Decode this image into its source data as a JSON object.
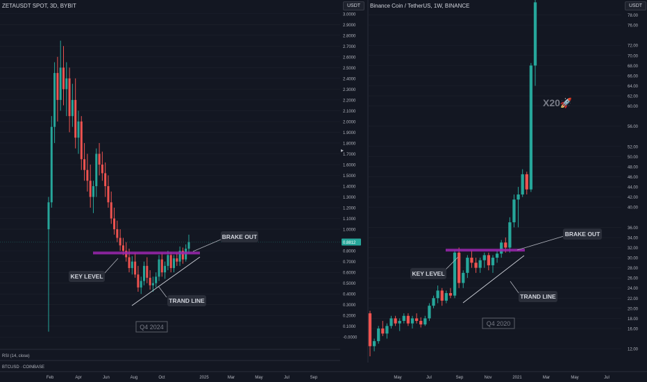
{
  "colors": {
    "background": "#131722",
    "up": "#26a69a",
    "down": "#ef5350",
    "grid": "#1e222d",
    "key_level": "#9c27b0",
    "callout_bg": "#2a2e39",
    "callout_text": "#d1d4dc",
    "axis_text": "#b2b5be"
  },
  "left_panel": {
    "header": "ZETAUSDT SPOT, 3D, BYBIT",
    "unit": "USDT",
    "price_badge": "0.8812",
    "annotations": {
      "brake_out": "BRAKE OUT",
      "key_level": "KEY LEVEL",
      "trand_line": "TRAND LINE",
      "period": "Q4 2024"
    },
    "footer": {
      "rsi": "RSI (14, close)",
      "btc": "BTCUSD · COINBASE"
    }
  },
  "right_panel": {
    "header": "Binance Coin / TetherUS, 1W, BINANCE",
    "unit": "USDT",
    "annotations": {
      "brake_out": "BRAKE OUT",
      "key_level": "KEY LEVEL",
      "trand_line": "TRAND LINE",
      "period": "Q4 2020",
      "multiplier": "X20🚀"
    }
  },
  "chart_data": [
    {
      "type": "candlestick",
      "title": "ZETAUSDT SPOT, 3D, BYBIT",
      "x_ticks": [
        "Feb",
        "Apr",
        "Jun",
        "Aug",
        "Oct",
        "2025",
        "Mar",
        "May",
        "Jul",
        "Sep"
      ],
      "y_ticks": [
        "-0.0000",
        "0.1000",
        "0.2000",
        "0.3000",
        "0.4000",
        "0.5000",
        "0.6000",
        "0.7000",
        "0.8000",
        "1.0000",
        "1.1000",
        "1.2000",
        "1.3000",
        "1.4000",
        "1.5000",
        "1.6000",
        "1.7000",
        "1.8000",
        "1.9000",
        "2.0000",
        "2.1000",
        "2.2000",
        "2.3000",
        "2.4000",
        "2.5000",
        "2.6000",
        "2.7000",
        "2.8000",
        "2.9000",
        "3.0000"
      ],
      "ylim": [
        -0.05,
        3.05
      ],
      "key_level": 0.78,
      "last_price": 0.8812,
      "candles": [
        [
          1.0,
          1.3,
          0.05,
          1.25
        ],
        [
          1.25,
          2.05,
          1.2,
          1.95
        ],
        [
          1.95,
          2.55,
          1.8,
          2.45
        ],
        [
          2.45,
          2.6,
          2.0,
          2.2
        ],
        [
          2.2,
          2.75,
          2.1,
          2.5
        ],
        [
          2.5,
          2.7,
          2.15,
          2.3
        ],
        [
          2.3,
          2.55,
          2.05,
          2.4
        ],
        [
          2.4,
          2.5,
          1.9,
          2.05
        ],
        [
          2.05,
          2.35,
          1.95,
          2.2
        ],
        [
          2.2,
          2.4,
          1.75,
          1.85
        ],
        [
          1.85,
          2.1,
          1.7,
          2.0
        ],
        [
          2.0,
          2.05,
          1.55,
          1.65
        ],
        [
          1.65,
          1.8,
          1.45,
          1.55
        ],
        [
          1.55,
          1.7,
          1.35,
          1.45
        ],
        [
          1.45,
          1.6,
          1.2,
          1.3
        ],
        [
          1.3,
          1.45,
          1.15,
          1.4
        ],
        [
          1.4,
          1.75,
          1.3,
          1.7
        ],
        [
          1.7,
          1.8,
          1.5,
          1.6
        ],
        [
          1.6,
          1.72,
          1.45,
          1.52
        ],
        [
          1.52,
          1.62,
          1.3,
          1.4
        ],
        [
          1.4,
          1.5,
          1.2,
          1.25
        ],
        [
          1.25,
          1.35,
          1.05,
          1.1
        ],
        [
          1.1,
          1.2,
          0.95,
          1.0
        ],
        [
          1.0,
          1.08,
          0.88,
          0.92
        ],
        [
          0.92,
          1.0,
          0.8,
          0.85
        ],
        [
          0.85,
          0.92,
          0.76,
          0.8
        ],
        [
          0.8,
          0.88,
          0.7,
          0.74
        ],
        [
          0.74,
          0.82,
          0.6,
          0.64
        ],
        [
          0.64,
          0.75,
          0.58,
          0.7
        ],
        [
          0.7,
          0.78,
          0.55,
          0.58
        ],
        [
          0.58,
          0.66,
          0.42,
          0.46
        ],
        [
          0.46,
          0.56,
          0.4,
          0.52
        ],
        [
          0.52,
          0.7,
          0.48,
          0.66
        ],
        [
          0.66,
          0.74,
          0.5,
          0.55
        ],
        [
          0.55,
          0.62,
          0.44,
          0.48
        ],
        [
          0.48,
          0.56,
          0.42,
          0.5
        ],
        [
          0.5,
          0.6,
          0.46,
          0.56
        ],
        [
          0.56,
          0.76,
          0.52,
          0.72
        ],
        [
          0.72,
          0.78,
          0.56,
          0.6
        ],
        [
          0.6,
          0.7,
          0.54,
          0.66
        ],
        [
          0.66,
          0.8,
          0.62,
          0.76
        ],
        [
          0.76,
          0.79,
          0.6,
          0.64
        ],
        [
          0.64,
          0.76,
          0.6,
          0.73
        ],
        [
          0.73,
          0.78,
          0.66,
          0.7
        ],
        [
          0.7,
          0.84,
          0.66,
          0.8
        ],
        [
          0.8,
          0.83,
          0.68,
          0.72
        ],
        [
          0.72,
          0.86,
          0.7,
          0.82
        ],
        [
          0.82,
          0.95,
          0.78,
          0.88
        ]
      ]
    },
    {
      "type": "candlestick",
      "title": "Binance Coin / TetherUS, 1W, BINANCE",
      "x_ticks": [
        "May",
        "Jul",
        "Sep",
        "Nov",
        "2021",
        "Mar",
        "May",
        "Jul"
      ],
      "y_ticks": [
        "12.00",
        "16.00",
        "18.00",
        "20.00",
        "22.00",
        "24.00",
        "26.00",
        "28.00",
        "30.00",
        "32.00",
        "34.00",
        "36.00",
        "40.00",
        "42.00",
        "44.00",
        "46.00",
        "48.00",
        "50.00",
        "52.00",
        "56.00",
        "60.00",
        "62.00",
        "64.00",
        "66.00",
        "68.00",
        "70.00",
        "72.00",
        "76.00",
        "78.00"
      ],
      "ylim": [
        10.5,
        80
      ],
      "key_level": 31.5,
      "candles": [
        [
          19.0,
          19.5,
          10.5,
          12.5
        ],
        [
          12.5,
          14.0,
          11.5,
          13.5
        ],
        [
          13.5,
          16.5,
          13.0,
          16.0
        ],
        [
          16.0,
          17.5,
          14.5,
          15.0
        ],
        [
          15.0,
          17.0,
          14.0,
          16.5
        ],
        [
          16.5,
          18.5,
          16.0,
          18.0
        ],
        [
          18.0,
          18.5,
          16.5,
          17.0
        ],
        [
          17.0,
          18.0,
          15.5,
          17.5
        ],
        [
          17.5,
          19.0,
          17.0,
          18.5
        ],
        [
          18.5,
          19.0,
          16.5,
          17.0
        ],
        [
          17.0,
          18.5,
          16.0,
          18.0
        ],
        [
          18.0,
          19.0,
          17.0,
          17.5
        ],
        [
          17.5,
          18.2,
          16.2,
          16.8
        ],
        [
          16.8,
          18.5,
          16.5,
          18.0
        ],
        [
          18.0,
          21.0,
          17.5,
          20.5
        ],
        [
          20.5,
          22.5,
          20.0,
          22.0
        ],
        [
          22.0,
          24.5,
          21.0,
          23.5
        ],
        [
          23.5,
          24.0,
          20.5,
          21.5
        ],
        [
          21.5,
          23.5,
          21.0,
          23.0
        ],
        [
          23.0,
          24.0,
          22.0,
          22.5
        ],
        [
          22.5,
          31.5,
          22.0,
          31.0
        ],
        [
          31.0,
          32.0,
          24.0,
          25.0
        ],
        [
          25.0,
          27.5,
          24.0,
          27.0
        ],
        [
          27.0,
          30.5,
          26.0,
          30.0
        ],
        [
          30.0,
          31.5,
          28.0,
          29.0
        ],
        [
          29.0,
          30.0,
          27.0,
          28.0
        ],
        [
          28.0,
          30.0,
          27.0,
          29.5
        ],
        [
          29.5,
          31.0,
          28.0,
          30.5
        ],
        [
          30.5,
          31.0,
          27.5,
          28.5
        ],
        [
          28.5,
          30.5,
          27.0,
          30.0
        ],
        [
          30.0,
          31.5,
          29.0,
          30.8
        ],
        [
          30.8,
          33.5,
          30.0,
          33.0
        ],
        [
          33.0,
          34.0,
          31.0,
          32.0
        ],
        [
          32.0,
          38.0,
          31.0,
          37.0
        ],
        [
          37.0,
          42.5,
          36.0,
          41.5
        ],
        [
          41.5,
          44.0,
          36.0,
          42.5
        ],
        [
          42.5,
          47.5,
          42.0,
          46.5
        ],
        [
          46.5,
          47.0,
          42.5,
          43.5
        ],
        [
          43.5,
          68.5,
          43.0,
          68.0
        ],
        [
          68.0,
          81.5,
          64.0,
          80.5
        ]
      ]
    }
  ]
}
